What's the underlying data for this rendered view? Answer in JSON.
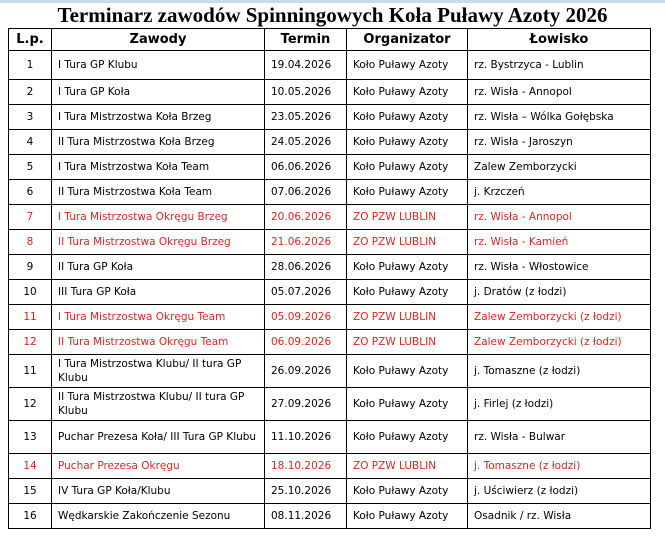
{
  "title": "Terminarz zawodów Spinningowych Koła Puławy Azoty 2026",
  "colors": {
    "highlight": "#e3241b",
    "text": "#000000"
  },
  "columns": [
    "L.p.",
    "Zawody",
    "Termin",
    "Organizator",
    "Łowisko"
  ],
  "rows": [
    {
      "lp": "1",
      "zawody": "I Tura GP Klubu",
      "termin": "19.04.2026",
      "organizator": "Koło Puławy Azoty",
      "lowisko": "rz. Bystrzyca - Lublin",
      "highlight": false
    },
    {
      "lp": "2",
      "zawody": "I Tura GP Koła",
      "termin": "10.05.2026",
      "organizator": "Koło Puławy Azoty",
      "lowisko": "rz. Wisła - Annopol",
      "highlight": false
    },
    {
      "lp": "3",
      "zawody": "I Tura Mistrzostwa  Koła Brzeg",
      "termin": "23.05.2026",
      "organizator": "Koło Puławy Azoty",
      "lowisko": "rz. Wisła – Wólka Gołębska",
      "highlight": false
    },
    {
      "lp": "4",
      "zawody": "II Tura Mistrzostwa  Koła Brzeg",
      "termin": "24.05.2026",
      "organizator": "Koło Puławy Azoty",
      "lowisko": "rz. Wisła - Jaroszyn",
      "highlight": false
    },
    {
      "lp": "5",
      "zawody": "I Tura Mistrzostwa  Koła Team",
      "termin": "06.06.2026",
      "organizator": "Koło Puławy Azoty",
      "lowisko": "Zalew Zemborzycki",
      "highlight": false
    },
    {
      "lp": "6",
      "zawody": "II Tura Mistrzostwa  Koła Team",
      "termin": "07.06.2026",
      "organizator": "Koło Puławy Azoty",
      "lowisko": "j. Krzczeń",
      "highlight": false
    },
    {
      "lp": "7",
      "zawody": "I Tura Mistrzostwa  Okręgu Brzeg",
      "termin": "20.06.2026",
      "organizator": "ZO PZW LUBLIN",
      "lowisko": "rz. Wisła - Annopol",
      "highlight": true
    },
    {
      "lp": "8",
      "zawody": "II Tura Mistrzostwa  Okręgu Brzeg",
      "termin": "21.06.2026",
      "organizator": "ZO PZW LUBLIN",
      "lowisko": "rz. Wisła - Kamień",
      "highlight": true
    },
    {
      "lp": "9",
      "zawody": "II Tura GP Koła",
      "termin": "28.06.2026",
      "organizator": "Koło Puławy Azoty",
      "lowisko": "rz. Wisła - Włostowice",
      "highlight": false
    },
    {
      "lp": "10",
      "zawody": "III Tura GP Koła",
      "termin": "05.07.2026",
      "organizator": "Koło Puławy Azoty",
      "lowisko": "j. Dratów (z łodzi)",
      "highlight": false
    },
    {
      "lp": "11",
      "zawody": "I Tura Mistrzostwa  Okręgu Team",
      "termin": "05.09.2026",
      "organizator": "ZO PZW LUBLIN",
      "lowisko": "Zalew Zemborzycki (z łodzi)",
      "highlight": true
    },
    {
      "lp": "12",
      "zawody": "II Tura Mistrzostwa  Okręgu Team",
      "termin": "06.09.2026",
      "organizator": "ZO PZW LUBLIN",
      "lowisko": "Zalew Zemborzycki (z łodzi)",
      "highlight": true
    },
    {
      "lp": "11",
      "zawody": "I Tura Mistrzostwa  Klubu/ II tura GP Klubu",
      "termin": "26.09.2026",
      "organizator": "Koło Puławy Azoty",
      "lowisko": "j. Tomaszne  (z łodzi)",
      "highlight": false
    },
    {
      "lp": "12",
      "zawody": "II Tura Mistrzostwa  Klubu/ II tura GP Klubu",
      "termin": "27.09.2026",
      "organizator": "Koło Puławy Azoty",
      "lowisko": "j. Firlej (z łodzi)",
      "highlight": false
    },
    {
      "lp": "13",
      "zawody": "Puchar Prezesa Koła/ III Tura GP Klubu",
      "termin": "11.10.2026",
      "organizator": "Koło Puławy Azoty",
      "lowisko": "rz. Wisła - Bulwar",
      "highlight": false
    },
    {
      "lp": "14",
      "zawody": "Puchar Prezesa Okręgu",
      "termin": "18.10.2026",
      "organizator": "ZO PZW LUBLIN",
      "lowisko": "j. Tomaszne  (z łodzi)",
      "highlight": true
    },
    {
      "lp": "15",
      "zawody": "IV Tura GP Koła/Klubu",
      "termin": "25.10.2026",
      "organizator": "Koło Puławy Azoty",
      "lowisko": "j. Uściwierz (z łodzi)",
      "highlight": false
    },
    {
      "lp": "16",
      "zawody": "Wędkarskie Zakończenie Sezonu",
      "termin": "08.11.2026",
      "organizator": "Koło Puławy Azoty",
      "lowisko": "Osadnik / rz. Wisła",
      "highlight": false
    }
  ]
}
